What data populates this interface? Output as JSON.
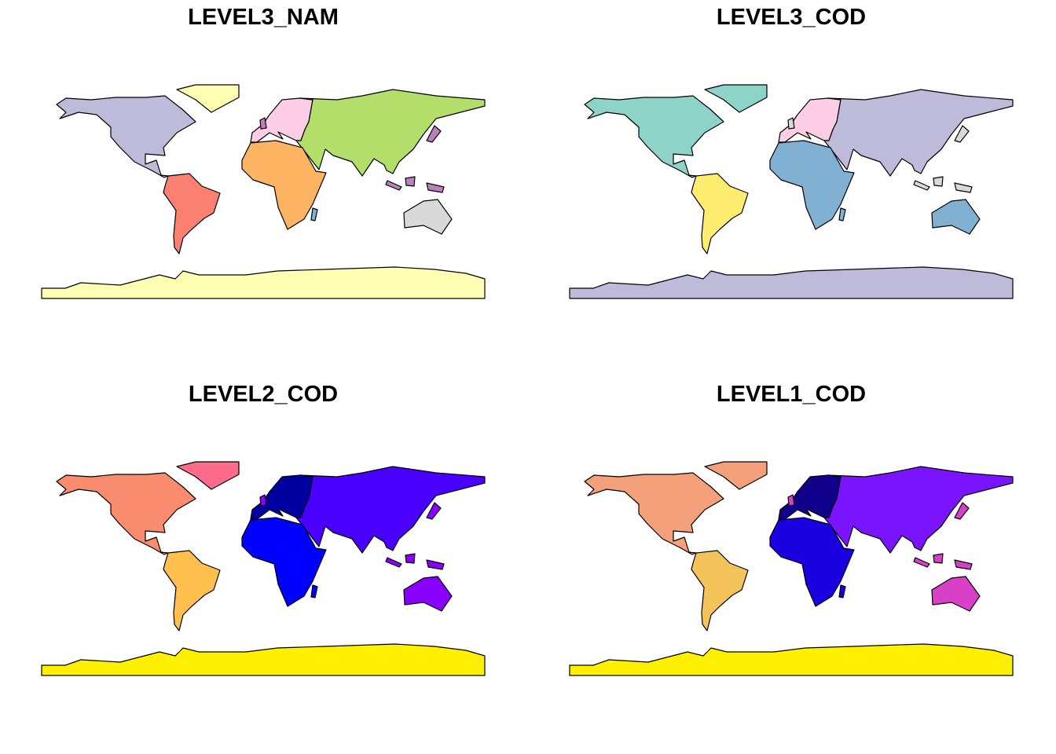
{
  "panels": [
    {
      "title": "LEVEL3_NAM"
    },
    {
      "title": "LEVEL3_COD"
    },
    {
      "title": "LEVEL2_COD"
    },
    {
      "title": "LEVEL1_COD"
    }
  ]
}
